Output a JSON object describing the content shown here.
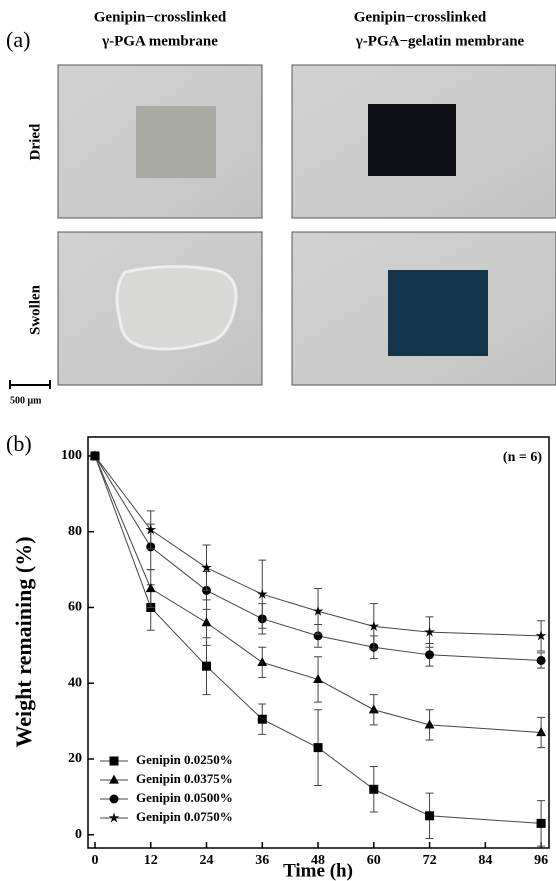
{
  "panel_a": {
    "label": "(a)",
    "columns": [
      [
        "Genipin−crosslinked",
        "γ-PGA membrane"
      ],
      [
        "Genipin−crosslinked",
        "γ-PGA−gelatin membrane"
      ]
    ],
    "rows": [
      "Dried",
      "Swollen"
    ],
    "scale_bar": "500 μm"
  },
  "chart_data": {
    "type": "line",
    "label": "(b)",
    "annotation": "(n = 6)",
    "x_label": "Time (h)",
    "y_label": "Weight remaining (%)",
    "x": [
      0,
      12,
      24,
      36,
      48,
      60,
      72,
      96
    ],
    "xlim": [
      -1.5,
      97.7
    ],
    "xticks": [
      0,
      12,
      24,
      36,
      48,
      60,
      72,
      84,
      96
    ],
    "ylim": [
      -3.5,
      105
    ],
    "yticks": [
      0,
      20,
      40,
      60,
      80,
      100
    ],
    "legend": "lower left",
    "color": "#000000",
    "series": [
      {
        "name": "Genipin 0.0250%",
        "marker": "square",
        "values": [
          100,
          60,
          44.5,
          30.5,
          23,
          12,
          5,
          3
        ],
        "errors": [
          0,
          6,
          7.5,
          4,
          10,
          6,
          6,
          6
        ]
      },
      {
        "name": "Genipin 0.0375%",
        "marker": "triangle",
        "values": [
          100,
          65,
          56,
          45.5,
          41,
          33,
          29,
          27
        ],
        "errors": [
          0,
          5,
          6,
          4,
          6,
          4,
          4,
          4
        ]
      },
      {
        "name": "Genipin 0.0500%",
        "marker": "circle",
        "values": [
          100,
          76,
          64.5,
          57,
          52.5,
          49.5,
          47.5,
          46
        ],
        "errors": [
          0,
          6,
          5,
          4,
          3,
          3,
          3,
          2
        ]
      },
      {
        "name": "Genipin 0.0750%",
        "marker": "star",
        "values": [
          100,
          80.5,
          70.5,
          63.5,
          59,
          55,
          53.5,
          52.5
        ],
        "errors": [
          0,
          5,
          6,
          9,
          6,
          6,
          4,
          4
        ]
      }
    ]
  }
}
